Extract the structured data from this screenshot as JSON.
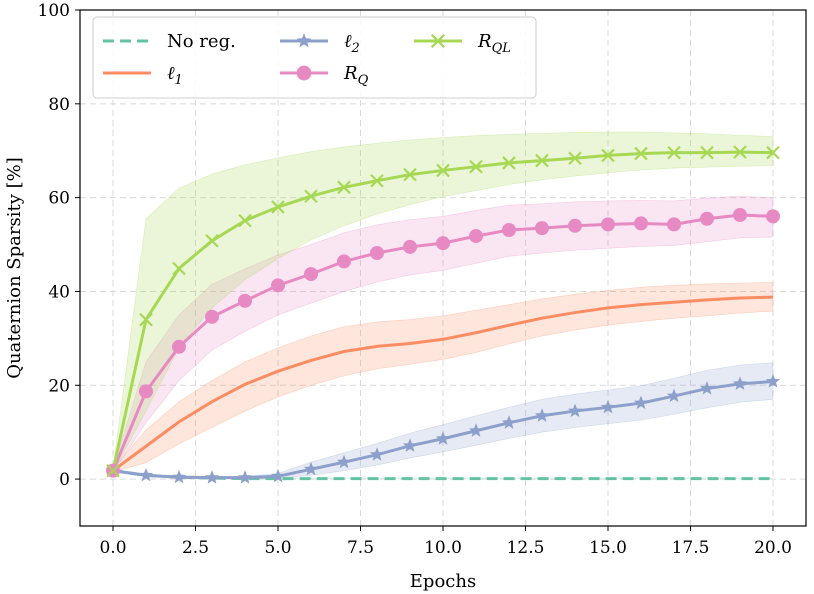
{
  "chart_data": {
    "type": "line",
    "title": "",
    "xlabel": "Epochs",
    "ylabel": "Quaternion Sparsity [%]",
    "xlim": [
      -1,
      21
    ],
    "ylim": [
      -10,
      100
    ],
    "xticks": [
      0.0,
      2.5,
      5.0,
      7.5,
      10.0,
      12.5,
      15.0,
      17.5,
      20.0
    ],
    "xtick_labels": [
      "0.0",
      "2.5",
      "5.0",
      "7.5",
      "10.0",
      "12.5",
      "15.0",
      "17.5",
      "20.0"
    ],
    "yticks": [
      0,
      20,
      40,
      60,
      80,
      100
    ],
    "ytick_labels": [
      "0",
      "20",
      "40",
      "60",
      "80",
      "100"
    ],
    "grid": true,
    "legend_position": "top-left",
    "series": [
      {
        "name": "No reg.",
        "legend_main": "No reg.",
        "legend_sub": "",
        "color": "#66c2a5",
        "style": "dashed",
        "marker": "none",
        "x": [
          0,
          1,
          2,
          3,
          4,
          5,
          6,
          7,
          8,
          9,
          10,
          11,
          12,
          13,
          14,
          15,
          16,
          17,
          18,
          19,
          20
        ],
        "values": [
          1.8,
          0.8,
          0.4,
          0.2,
          0.1,
          0.1,
          0.1,
          0.1,
          0.1,
          0.1,
          0.1,
          0.1,
          0.1,
          0.1,
          0.1,
          0.1,
          0.1,
          0.1,
          0.1,
          0.1,
          0.1
        ],
        "lower": [
          1.8,
          0.8,
          0.4,
          0.2,
          0.1,
          0.1,
          0.1,
          0.1,
          0.1,
          0.1,
          0.1,
          0.1,
          0.1,
          0.1,
          0.1,
          0.1,
          0.1,
          0.1,
          0.1,
          0.1,
          0.1
        ],
        "upper": [
          1.8,
          0.8,
          0.4,
          0.2,
          0.1,
          0.1,
          0.1,
          0.1,
          0.1,
          0.1,
          0.1,
          0.1,
          0.1,
          0.1,
          0.1,
          0.1,
          0.1,
          0.1,
          0.1,
          0.1,
          0.1
        ]
      },
      {
        "name": "ℓ1",
        "legend_main": "ℓ",
        "legend_sub": "1",
        "color": "#fc8d62",
        "style": "solid",
        "marker": "none",
        "x": [
          0,
          1,
          2,
          3,
          4,
          5,
          6,
          7,
          8,
          9,
          10,
          11,
          12,
          13,
          14,
          15,
          16,
          17,
          18,
          19,
          20
        ],
        "values": [
          1.8,
          7.0,
          12.2,
          16.5,
          20.2,
          23.0,
          25.3,
          27.2,
          28.3,
          28.9,
          29.8,
          31.2,
          32.8,
          34.3,
          35.5,
          36.5,
          37.2,
          37.7,
          38.2,
          38.6,
          38.8
        ],
        "lower": [
          1.5,
          3.5,
          7.5,
          11.0,
          14.5,
          17.5,
          20.0,
          22.0,
          23.5,
          24.5,
          25.5,
          27.0,
          28.8,
          30.5,
          31.8,
          32.8,
          33.6,
          34.3,
          34.8,
          35.4,
          35.8
        ],
        "upper": [
          2.2,
          10.5,
          16.5,
          21.0,
          25.0,
          28.0,
          30.5,
          32.5,
          33.5,
          34.0,
          34.8,
          36.0,
          37.2,
          38.4,
          39.4,
          40.2,
          40.9,
          41.3,
          41.6,
          41.8,
          41.9
        ]
      },
      {
        "name": "ℓ2",
        "legend_main": "ℓ",
        "legend_sub": "2",
        "color": "#8da0cb",
        "style": "solid",
        "marker": "star",
        "x": [
          0,
          1,
          2,
          3,
          4,
          5,
          6,
          7,
          8,
          9,
          10,
          11,
          12,
          13,
          14,
          15,
          16,
          17,
          18,
          19,
          20
        ],
        "values": [
          1.8,
          0.8,
          0.4,
          0.3,
          0.3,
          0.6,
          2.1,
          3.6,
          5.2,
          7.1,
          8.6,
          10.3,
          12.0,
          13.5,
          14.5,
          15.3,
          16.2,
          17.7,
          19.3,
          20.3,
          20.8
        ],
        "lower": [
          1.5,
          0.5,
          0.2,
          0.1,
          0.1,
          0.2,
          0.8,
          1.8,
          3.0,
          4.5,
          5.8,
          7.2,
          8.7,
          10.0,
          11.0,
          11.8,
          12.6,
          13.8,
          15.2,
          16.4,
          17.0
        ],
        "upper": [
          2.1,
          1.1,
          0.7,
          0.6,
          0.6,
          1.2,
          3.6,
          5.6,
          7.6,
          9.8,
          11.6,
          13.5,
          15.3,
          17.0,
          18.1,
          19.0,
          19.9,
          21.5,
          23.2,
          24.3,
          24.8
        ]
      },
      {
        "name": "RQ",
        "legend_main": "R",
        "legend_sub": "Q",
        "color": "#e78ac3",
        "style": "solid",
        "marker": "circle",
        "x": [
          0,
          1,
          2,
          3,
          4,
          5,
          6,
          7,
          8,
          9,
          10,
          11,
          12,
          13,
          14,
          15,
          16,
          17,
          18,
          19,
          20
        ],
        "values": [
          1.8,
          18.7,
          28.2,
          34.6,
          38.0,
          41.3,
          43.7,
          46.4,
          48.2,
          49.5,
          50.3,
          51.8,
          53.1,
          53.5,
          54.0,
          54.3,
          54.5,
          54.3,
          55.5,
          56.3,
          56.0
        ],
        "lower": [
          1.5,
          12.0,
          21.0,
          27.5,
          31.5,
          35.0,
          37.5,
          40.0,
          42.0,
          43.5,
          44.5,
          46.0,
          47.5,
          48.2,
          48.8,
          49.2,
          49.6,
          49.8,
          50.6,
          51.4,
          51.6
        ],
        "upper": [
          2.2,
          25.0,
          35.0,
          41.5,
          44.8,
          47.8,
          50.0,
          52.5,
          54.2,
          55.3,
          56.0,
          57.3,
          58.4,
          58.7,
          59.1,
          59.3,
          59.4,
          59.3,
          59.9,
          60.3,
          60.0
        ]
      },
      {
        "name": "RQL",
        "legend_main": "R",
        "legend_sub": "QL",
        "color": "#a6d854",
        "style": "solid",
        "marker": "x",
        "x": [
          0,
          1,
          2,
          3,
          4,
          5,
          6,
          7,
          8,
          9,
          10,
          11,
          12,
          13,
          14,
          15,
          16,
          17,
          18,
          19,
          20
        ],
        "values": [
          1.8,
          34.0,
          44.9,
          50.8,
          55.1,
          58.0,
          60.3,
          62.2,
          63.6,
          64.9,
          65.8,
          66.6,
          67.4,
          67.9,
          68.4,
          69.0,
          69.4,
          69.6,
          69.6,
          69.7,
          69.6
        ],
        "lower": [
          1.5,
          14.5,
          28.0,
          36.5,
          42.5,
          47.0,
          51.0,
          54.0,
          56.5,
          58.5,
          60.2,
          61.5,
          62.8,
          63.8,
          64.6,
          65.3,
          65.9,
          66.3,
          66.5,
          66.7,
          66.8
        ],
        "upper": [
          2.2,
          55.5,
          62.0,
          65.0,
          67.0,
          68.5,
          69.8,
          70.8,
          71.6,
          72.3,
          72.8,
          73.2,
          73.5,
          73.7,
          73.9,
          74.0,
          74.0,
          73.8,
          73.6,
          73.3,
          73.0
        ]
      }
    ]
  }
}
